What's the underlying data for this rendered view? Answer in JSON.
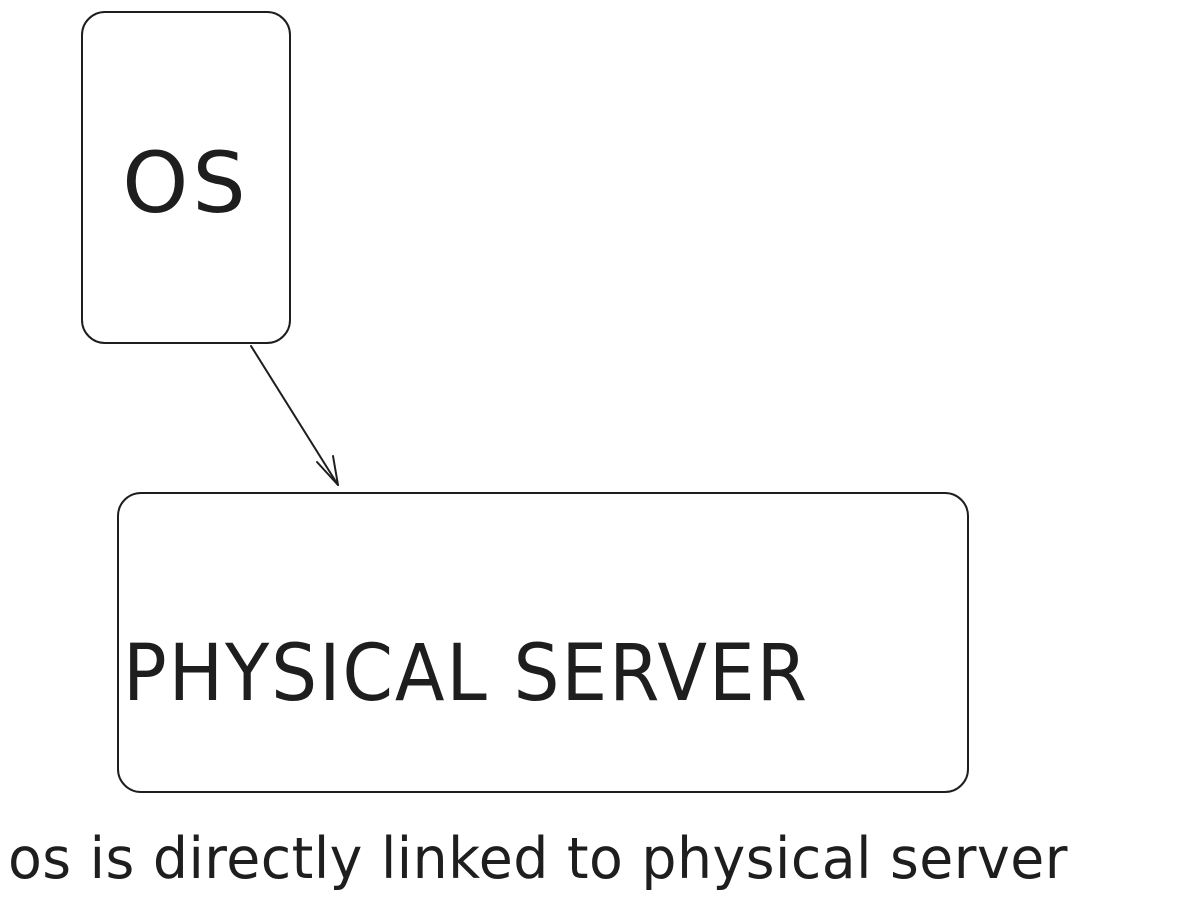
{
  "diagram": {
    "nodes": [
      {
        "id": "os",
        "label": "OS"
      },
      {
        "id": "server",
        "label": "PHYSICAL SERVER"
      }
    ],
    "edges": [
      {
        "from": "os",
        "to": "server"
      }
    ],
    "caption": "os is directly linked to physical server"
  },
  "colors": {
    "stroke": "#1e1e1e",
    "background": "#ffffff"
  }
}
